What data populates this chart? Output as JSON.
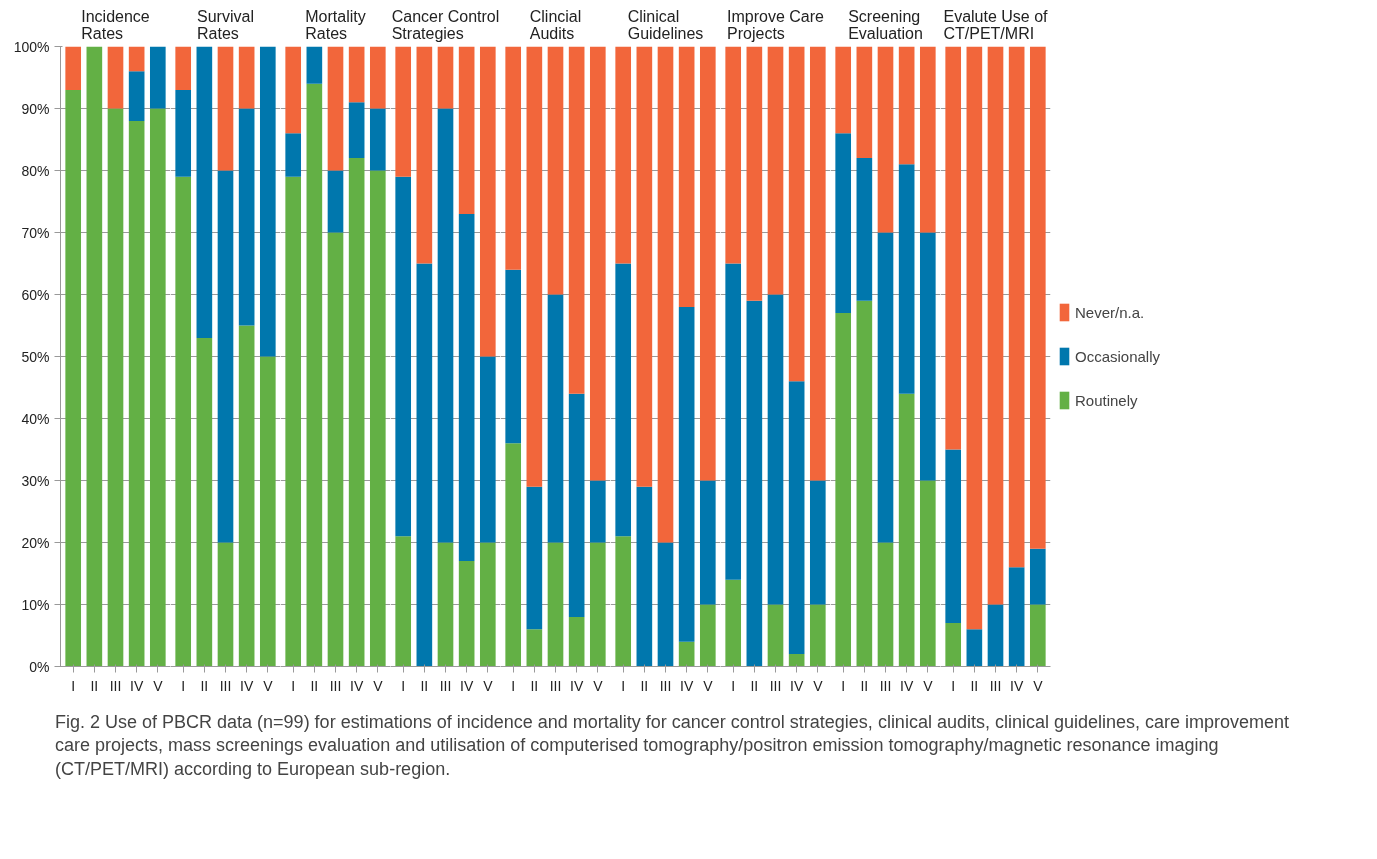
{
  "chart_data": [
    {
      "type": "bar",
      "stacked": true,
      "title": "Incidence\nRates",
      "categories": [
        "I",
        "II",
        "III",
        "IV",
        "V"
      ],
      "ylim": [
        0,
        100
      ],
      "yticks": [
        {
          "value": 0,
          "label": "0%"
        },
        {
          "value": 10,
          "label": "10%"
        },
        {
          "value": 20,
          "label": "20%"
        },
        {
          "value": 30,
          "label": "30%"
        },
        {
          "value": 40,
          "label": "40%"
        },
        {
          "value": 50,
          "label": "50%"
        },
        {
          "value": 60,
          "label": "60%"
        },
        {
          "value": 70,
          "label": "70%"
        },
        {
          "value": 80,
          "label": "80%"
        },
        {
          "value": 90,
          "label": "90%"
        },
        {
          "value": 100,
          "label": "100%"
        }
      ],
      "grid": "y",
      "series": [
        {
          "color": "#63b045",
          "values": [
            93,
            100,
            90,
            88,
            90
          ]
        },
        {
          "color": "#0077ad",
          "values": [
            0,
            0,
            0,
            8,
            10
          ]
        },
        {
          "color": "#f2663b",
          "values": [
            7,
            0,
            10,
            4,
            0
          ]
        }
      ],
      "annotations": [
        "Fig. 2 Use of PBCR data (n=99) for estimations of incidence and mortality for cancer control strategies, clinical audits, clinical guidelines, care improvement care projects, mass screenings evaluation and utilisation of computerised tomography/positron emission tomography/magnetic resonance imaging (CT/PET/MRI) according to European sub-region."
      ]
    },
    {
      "type": "bar",
      "stacked": true,
      "title": "Survival\nRates",
      "categories": [
        "I",
        "II",
        "III",
        "IV",
        "V"
      ],
      "ylim": [
        0,
        100
      ],
      "yticks": [
        0,
        10,
        20,
        30,
        40,
        50,
        60,
        70,
        80,
        90,
        100
      ],
      "grid": "y",
      "tick_labels": "x",
      "series": [
        {
          "color": "#63b045",
          "values": [
            79,
            53,
            20,
            55,
            50
          ]
        },
        {
          "color": "#0077ad",
          "values": [
            14,
            47,
            60,
            35,
            50
          ]
        },
        {
          "color": "#f2663b",
          "values": [
            7,
            0,
            20,
            10,
            0
          ]
        }
      ]
    },
    {
      "type": "bar",
      "stacked": true,
      "title": "Mortality\nRates",
      "categories": [
        "I",
        "II",
        "III",
        "IV",
        "V"
      ],
      "ylim": [
        0,
        100
      ],
      "yticks": [
        0,
        10,
        20,
        30,
        40,
        50,
        60,
        70,
        80,
        90,
        100
      ],
      "grid": "y",
      "tick_labels": "x",
      "series": [
        {
          "color": "#63b045",
          "values": [
            79,
            94,
            70,
            82,
            80
          ]
        },
        {
          "color": "#0077ad",
          "values": [
            7,
            6,
            10,
            9,
            10
          ]
        },
        {
          "color": "#f2663b",
          "values": [
            14,
            0,
            20,
            9,
            10
          ]
        }
      ]
    },
    {
      "type": "bar",
      "stacked": true,
      "title": "Cancer Control\nStrategies",
      "categories": [
        "I",
        "II",
        "III",
        "IV",
        "V"
      ],
      "ylim": [
        0,
        100
      ],
      "yticks": [
        0,
        10,
        20,
        30,
        40,
        50,
        60,
        70,
        80,
        90,
        100
      ],
      "grid": "y",
      "tick_labels": "x",
      "series": [
        {
          "color": "#63b045",
          "values": [
            21,
            0,
            20,
            17,
            20
          ]
        },
        {
          "color": "#0077ad",
          "values": [
            58,
            65,
            70,
            56,
            30
          ]
        },
        {
          "color": "#f2663b",
          "values": [
            21,
            35,
            10,
            27,
            50
          ]
        }
      ]
    },
    {
      "type": "bar",
      "stacked": true,
      "title": "Clincial\nAudits",
      "categories": [
        "I",
        "II",
        "III",
        "IV",
        "V"
      ],
      "ylim": [
        0,
        100
      ],
      "yticks": [
        0,
        10,
        20,
        30,
        40,
        50,
        60,
        70,
        80,
        90,
        100
      ],
      "grid": "y",
      "tick_labels": "x",
      "series": [
        {
          "color": "#63b045",
          "values": [
            36,
            6,
            20,
            8,
            20
          ]
        },
        {
          "color": "#0077ad",
          "values": [
            28,
            23,
            40,
            36,
            10
          ]
        },
        {
          "color": "#f2663b",
          "values": [
            36,
            71,
            40,
            56,
            70
          ]
        }
      ]
    },
    {
      "type": "bar",
      "stacked": true,
      "title": "Clinical\nGuidelines",
      "categories": [
        "I",
        "II",
        "III",
        "IV",
        "V"
      ],
      "ylim": [
        0,
        100
      ],
      "yticks": [
        0,
        10,
        20,
        30,
        40,
        50,
        60,
        70,
        80,
        90,
        100
      ],
      "grid": "y",
      "tick_labels": "x",
      "series": [
        {
          "color": "#63b045",
          "values": [
            21,
            0,
            0,
            4,
            10
          ]
        },
        {
          "color": "#0077ad",
          "values": [
            44,
            29,
            20,
            54,
            20
          ]
        },
        {
          "color": "#f2663b",
          "values": [
            35,
            71,
            80,
            42,
            70
          ]
        }
      ]
    },
    {
      "type": "bar",
      "stacked": true,
      "title": "Improve Care\nProjects",
      "categories": [
        "I",
        "II",
        "III",
        "IV",
        "V"
      ],
      "ylim": [
        0,
        100
      ],
      "yticks": [
        0,
        10,
        20,
        30,
        40,
        50,
        60,
        70,
        80,
        90,
        100
      ],
      "grid": "y",
      "tick_labels": "x",
      "series": [
        {
          "color": "#63b045",
          "values": [
            14,
            0,
            10,
            2,
            10
          ]
        },
        {
          "color": "#0077ad",
          "values": [
            51,
            59,
            50,
            44,
            20
          ]
        },
        {
          "color": "#f2663b",
          "values": [
            35,
            41,
            40,
            54,
            70
          ]
        }
      ]
    },
    {
      "type": "bar",
      "stacked": true,
      "title": "Screening\nEvaluation",
      "categories": [
        "I",
        "II",
        "III",
        "IV",
        "V"
      ],
      "ylim": [
        0,
        100
      ],
      "yticks": [
        0,
        10,
        20,
        30,
        40,
        50,
        60,
        70,
        80,
        90,
        100
      ],
      "grid": "y",
      "tick_labels": "x",
      "series": [
        {
          "color": "#63b045",
          "values": [
            57,
            59,
            20,
            44,
            30
          ]
        },
        {
          "color": "#0077ad",
          "values": [
            29,
            23,
            50,
            37,
            40
          ]
        },
        {
          "color": "#f2663b",
          "values": [
            14,
            18,
            30,
            19,
            30
          ]
        }
      ]
    },
    {
      "type": "bar",
      "stacked": true,
      "title": "Evalute Use of\nCT/PET/MRI",
      "categories": [
        "I",
        "II",
        "III",
        "IV",
        "V"
      ],
      "ylim": [
        0,
        100
      ],
      "yticks": [
        0,
        10,
        20,
        30,
        40,
        50,
        60,
        70,
        80,
        90,
        100
      ],
      "grid": "y",
      "tick_labels": "x",
      "legend": "right",
      "series": [
        {
          "name": "Routinely",
          "color": "#63b045",
          "values": [
            7,
            0,
            0,
            0,
            10
          ]
        },
        {
          "name": "Occasionally",
          "color": "#0077ad",
          "values": [
            28,
            6,
            10,
            16,
            9
          ]
        },
        {
          "name": "Never/n.a.",
          "color": "#f2663b",
          "values": [
            65,
            94,
            90,
            84,
            81
          ]
        }
      ]
    }
  ]
}
